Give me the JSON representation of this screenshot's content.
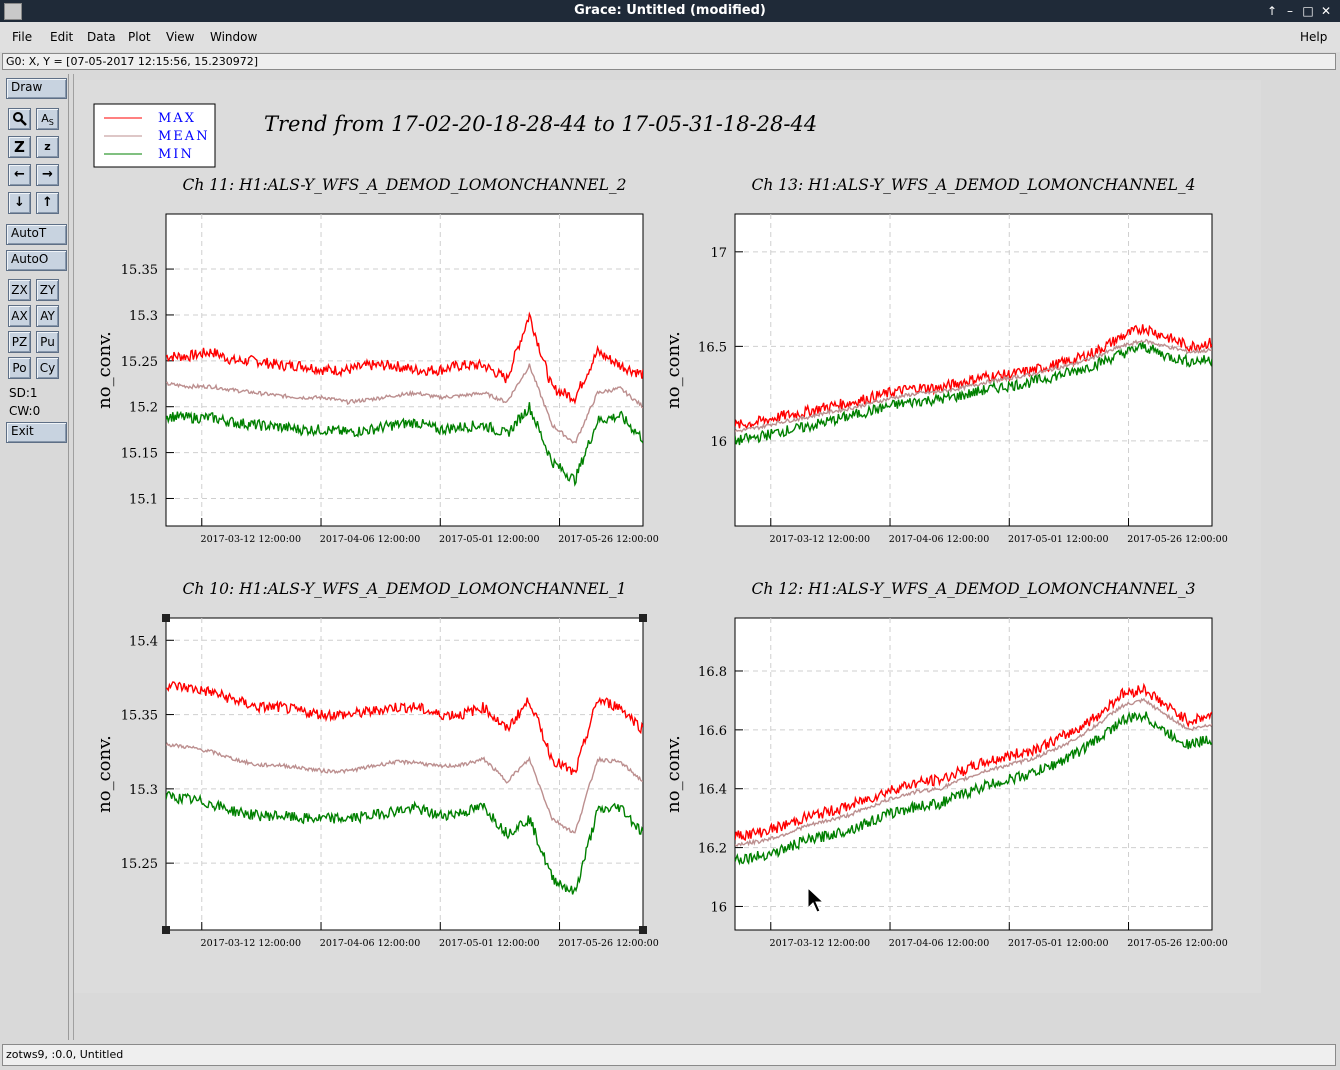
{
  "window": {
    "title": "Grace: Untitled (modified)"
  },
  "menubar": {
    "items": [
      "File",
      "Edit",
      "Data",
      "Plot",
      "View",
      "Window"
    ],
    "help": "Help"
  },
  "locator": {
    "text": "G0: X, Y = [07-05-2017 12:15:56, 15.230972]"
  },
  "toolbar": {
    "draw": "Draw",
    "autot": "AutoT",
    "autoo": "AutoO",
    "grid_buttons": [
      "ZX",
      "ZY",
      "AX",
      "AY",
      "PZ",
      "Pu",
      "Po",
      "Cy"
    ],
    "sd": "SD:1",
    "cw": "CW:0",
    "exit": "Exit"
  },
  "status": {
    "text": "zotws9, :0.0, Untitled"
  },
  "graph": {
    "title": "Trend from 17-02-20-18-28-44 to 17-05-31-18-28-44",
    "legend": [
      {
        "label": "MAX",
        "color": "#ff0000"
      },
      {
        "label": "MEAN",
        "color": "#bc8f8f"
      },
      {
        "label": "MIN",
        "color": "#008000"
      }
    ],
    "legend_text_color": "#0000ff"
  },
  "chart_data": [
    {
      "type": "line",
      "title": "Ch 11: H1:ALS-Y_WFS_A_DEMOD_LOMONCHANNEL_2",
      "ylabel": "no_conv.",
      "xticks": [
        "2017-03-12 12:00:00",
        "2017-04-06 12:00:00",
        "2017-05-01 12:00:00",
        "2017-05-26 12:00:00"
      ],
      "yticks": [
        "15.1",
        "15.15",
        "15.2",
        "15.25",
        "15.3",
        "15.35"
      ],
      "ylim": [
        15.07,
        15.41
      ],
      "series": [
        {
          "name": "MAX",
          "values": [
            15.255,
            15.255,
            15.26,
            15.25,
            15.25,
            15.245,
            15.245,
            15.24,
            15.24,
            15.245,
            15.245,
            15.24,
            15.24,
            15.245,
            15.245,
            15.23,
            15.3,
            15.22,
            15.21,
            15.26,
            15.245,
            15.235
          ]
        },
        {
          "name": "MEAN",
          "values": [
            15.225,
            15.222,
            15.222,
            15.218,
            15.215,
            15.212,
            15.21,
            15.21,
            15.205,
            15.208,
            15.212,
            15.215,
            15.21,
            15.212,
            15.215,
            15.205,
            15.245,
            15.18,
            15.16,
            15.215,
            15.22,
            15.2
          ]
        },
        {
          "name": "MIN",
          "values": [
            15.19,
            15.188,
            15.188,
            15.183,
            15.18,
            15.178,
            15.175,
            15.175,
            15.172,
            15.175,
            15.18,
            15.183,
            15.175,
            15.178,
            15.18,
            15.17,
            15.2,
            15.14,
            15.12,
            15.185,
            15.19,
            15.165
          ]
        }
      ]
    },
    {
      "type": "line",
      "title": "Ch 13: H1:ALS-Y_WFS_A_DEMOD_LOMONCHANNEL_4",
      "ylabel": "no_conv.",
      "xticks": [
        "2017-03-12 12:00:00",
        "2017-04-06 12:00:00",
        "2017-05-01 12:00:00",
        "2017-05-26 12:00:00"
      ],
      "yticks": [
        "16",
        "16.5",
        "17"
      ],
      "ylim": [
        15.55,
        17.2
      ],
      "series": [
        {
          "name": "MAX",
          "values": [
            16.08,
            16.1,
            16.13,
            16.15,
            16.18,
            16.2,
            16.23,
            16.26,
            16.28,
            16.28,
            16.31,
            16.34,
            16.35,
            16.37,
            16.4,
            16.43,
            16.48,
            16.55,
            16.6,
            16.55,
            16.5,
            16.52
          ]
        },
        {
          "name": "MEAN",
          "values": [
            16.05,
            16.07,
            16.1,
            16.12,
            16.15,
            16.17,
            16.2,
            16.23,
            16.25,
            16.26,
            16.28,
            16.31,
            16.33,
            16.35,
            16.38,
            16.41,
            16.45,
            16.5,
            16.53,
            16.5,
            16.47,
            16.48
          ]
        },
        {
          "name": "MIN",
          "values": [
            16.0,
            16.02,
            16.05,
            16.07,
            16.1,
            16.13,
            16.16,
            16.19,
            16.21,
            16.22,
            16.24,
            16.27,
            16.29,
            16.31,
            16.34,
            16.37,
            16.41,
            16.46,
            16.5,
            16.45,
            16.42,
            16.43
          ]
        }
      ]
    },
    {
      "type": "line",
      "title": "Ch 10: H1:ALS-Y_WFS_A_DEMOD_LOMONCHANNEL_1",
      "ylabel": "no_conv.",
      "xticks": [
        "2017-03-12 12:00:00",
        "2017-04-06 12:00:00",
        "2017-05-01 12:00:00",
        "2017-05-26 12:00:00"
      ],
      "yticks": [
        "15.25",
        "15.3",
        "15.35",
        "15.4"
      ],
      "ylim": [
        15.205,
        15.415
      ],
      "series": [
        {
          "name": "MAX",
          "values": [
            15.37,
            15.368,
            15.365,
            15.36,
            15.355,
            15.355,
            15.352,
            15.35,
            15.35,
            15.352,
            15.355,
            15.355,
            15.35,
            15.35,
            15.355,
            15.34,
            15.36,
            15.32,
            15.31,
            15.36,
            15.355,
            15.34
          ]
        },
        {
          "name": "MEAN",
          "values": [
            15.33,
            15.328,
            15.325,
            15.32,
            15.316,
            15.316,
            15.314,
            15.312,
            15.312,
            15.315,
            15.318,
            15.318,
            15.315,
            15.316,
            15.32,
            15.305,
            15.32,
            15.28,
            15.27,
            15.32,
            15.318,
            15.305
          ]
        },
        {
          "name": "MIN",
          "values": [
            15.295,
            15.293,
            15.29,
            15.285,
            15.282,
            15.282,
            15.28,
            15.28,
            15.28,
            15.282,
            15.285,
            15.287,
            15.282,
            15.284,
            15.288,
            15.27,
            15.28,
            15.24,
            15.23,
            15.285,
            15.288,
            15.27
          ]
        }
      ]
    },
    {
      "type": "line",
      "title": "Ch 12: H1:ALS-Y_WFS_A_DEMOD_LOMONCHANNEL_3",
      "ylabel": "no_conv.",
      "xticks": [
        "2017-03-12 12:00:00",
        "2017-04-06 12:00:00",
        "2017-05-01 12:00:00",
        "2017-05-26 12:00:00"
      ],
      "yticks": [
        "16",
        "16.2",
        "16.4",
        "16.6",
        "16.8"
      ],
      "ylim": [
        15.92,
        16.98
      ],
      "series": [
        {
          "name": "MAX",
          "values": [
            16.24,
            16.25,
            16.27,
            16.3,
            16.32,
            16.34,
            16.37,
            16.4,
            16.42,
            16.43,
            16.46,
            16.49,
            16.51,
            16.53,
            16.56,
            16.6,
            16.65,
            16.72,
            16.74,
            16.68,
            16.63,
            16.65
          ]
        },
        {
          "name": "MEAN",
          "values": [
            16.21,
            16.22,
            16.24,
            16.27,
            16.29,
            16.31,
            16.34,
            16.37,
            16.39,
            16.4,
            16.43,
            16.46,
            16.48,
            16.5,
            16.53,
            16.57,
            16.62,
            16.68,
            16.7,
            16.65,
            16.6,
            16.62
          ]
        },
        {
          "name": "MIN",
          "values": [
            16.16,
            16.17,
            16.19,
            16.22,
            16.24,
            16.26,
            16.29,
            16.32,
            16.34,
            16.35,
            16.38,
            16.41,
            16.43,
            16.45,
            16.48,
            16.52,
            16.57,
            16.63,
            16.65,
            16.59,
            16.55,
            16.57
          ]
        }
      ]
    }
  ]
}
